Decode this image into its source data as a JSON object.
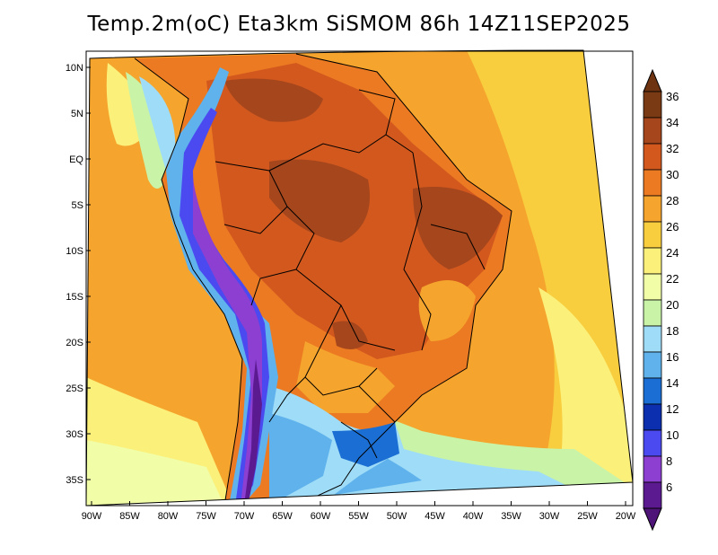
{
  "title": "Temp.2m(oC) Eta3km SiSMOM 86h 14Z11SEP2025",
  "lat_labels": [
    "10N",
    "5N",
    "EQ",
    "5S",
    "10S",
    "15S",
    "20S",
    "25S",
    "30S",
    "35S"
  ],
  "lon_labels": [
    "90W",
    "85W",
    "80W",
    "75W",
    "70W",
    "65W",
    "60W",
    "55W",
    "50W",
    "45W",
    "40W",
    "35W",
    "30W",
    "25W",
    "20W"
  ],
  "colorbar": {
    "labels": [
      "36",
      "34",
      "32",
      "30",
      "28",
      "26",
      "24",
      "22",
      "20",
      "18",
      "16",
      "14",
      "12",
      "10",
      "8",
      "6"
    ],
    "colors": [
      "#7a3a14",
      "#a5461c",
      "#d2581e",
      "#ec7a22",
      "#f5a52d",
      "#f8cd3e",
      "#fbf07a",
      "#f1fda7",
      "#c9f4a8",
      "#9fdcf7",
      "#5fb2ec",
      "#1a6ed4",
      "#0b2fae",
      "#4a4af0",
      "#8c3fd1",
      "#5b1a8f"
    ],
    "top_color": "#6e3412",
    "bottom_color": "#4e1478"
  }
}
